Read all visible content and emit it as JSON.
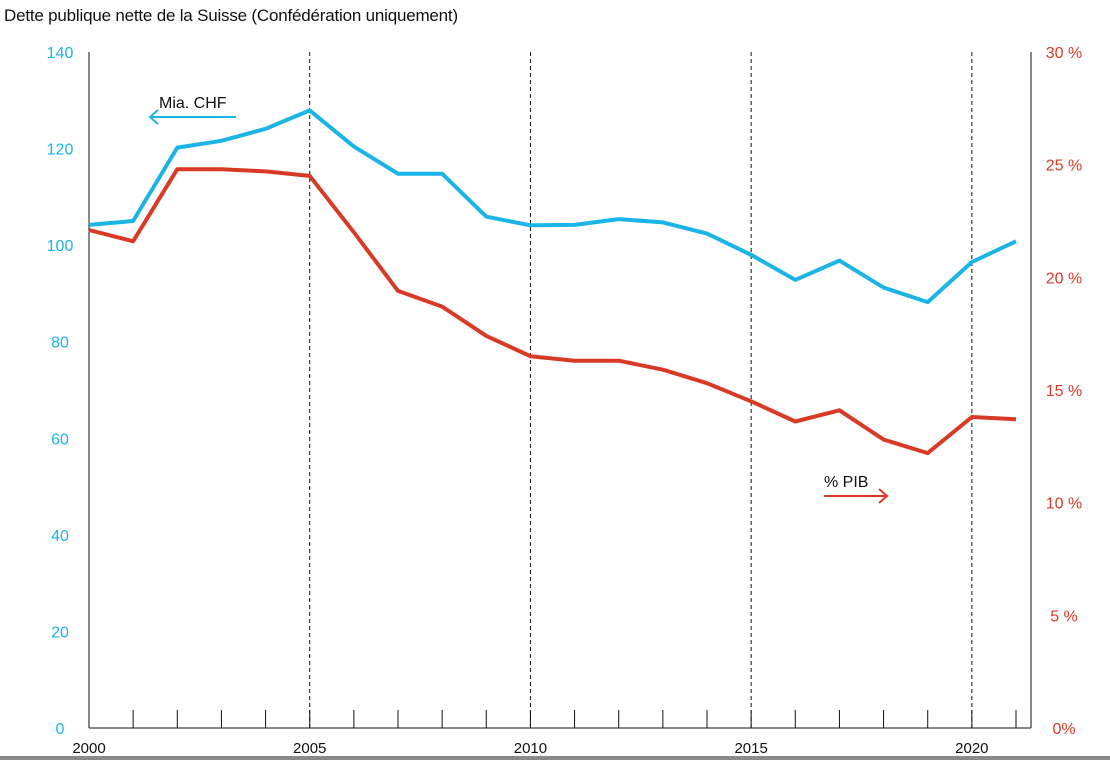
{
  "chart_data": {
    "type": "line",
    "title": "Dette publique nette de la Suisse (Confédération uniquement)",
    "colors": {
      "chf": "#1ab4e6",
      "pib": "#d93a26",
      "axis": "#111111"
    },
    "x": [
      2000,
      2001,
      2002,
      2003,
      2004,
      2005,
      2006,
      2007,
      2008,
      2009,
      2010,
      2011,
      2012,
      2013,
      2014,
      2015,
      2016,
      2017,
      2018,
      2019,
      2020,
      2021
    ],
    "x_ticks": [
      "2000",
      "2005",
      "2010",
      "2015",
      "2020"
    ],
    "x_tick_values": [
      2000,
      2005,
      2010,
      2015,
      2020
    ],
    "xlim": [
      2000,
      2021
    ],
    "left_axis": {
      "ylim": [
        0,
        140
      ],
      "ticks": [
        "0",
        "20",
        "40",
        "60",
        "80",
        "100",
        "120",
        "140"
      ],
      "tick_values": [
        0,
        20,
        40,
        60,
        80,
        100,
        120,
        140
      ]
    },
    "right_axis": {
      "ylim": [
        0,
        30
      ],
      "ticks": [
        "0%",
        "5 %",
        "10 %",
        "15 %",
        "20 %",
        "25 %",
        "30 %"
      ],
      "tick_values": [
        0,
        5,
        10,
        15,
        20,
        25,
        30
      ]
    },
    "grid": "vertical dashed at labeled years",
    "series": [
      {
        "name": "Mia. CHF",
        "axis": "left",
        "values": [
          104.2,
          105.0,
          120.2,
          121.6,
          124.1,
          127.9,
          120.4,
          114.8,
          114.8,
          105.9,
          104.1,
          104.2,
          105.4,
          104.7,
          102.4,
          98.0,
          92.8,
          96.8,
          91.2,
          88.2,
          96.5,
          100.8
        ]
      },
      {
        "name": "% PIB",
        "axis": "right",
        "values": [
          22.1,
          21.6,
          24.8,
          24.8,
          24.7,
          24.5,
          22.0,
          19.4,
          18.7,
          17.4,
          16.5,
          16.3,
          16.3,
          15.9,
          15.3,
          14.5,
          13.6,
          14.1,
          12.8,
          12.2,
          13.8,
          13.7
        ]
      }
    ],
    "annotations": [
      {
        "text": "Mia. CHF",
        "arrow": "left"
      },
      {
        "text": "% PIB",
        "arrow": "right"
      }
    ]
  }
}
